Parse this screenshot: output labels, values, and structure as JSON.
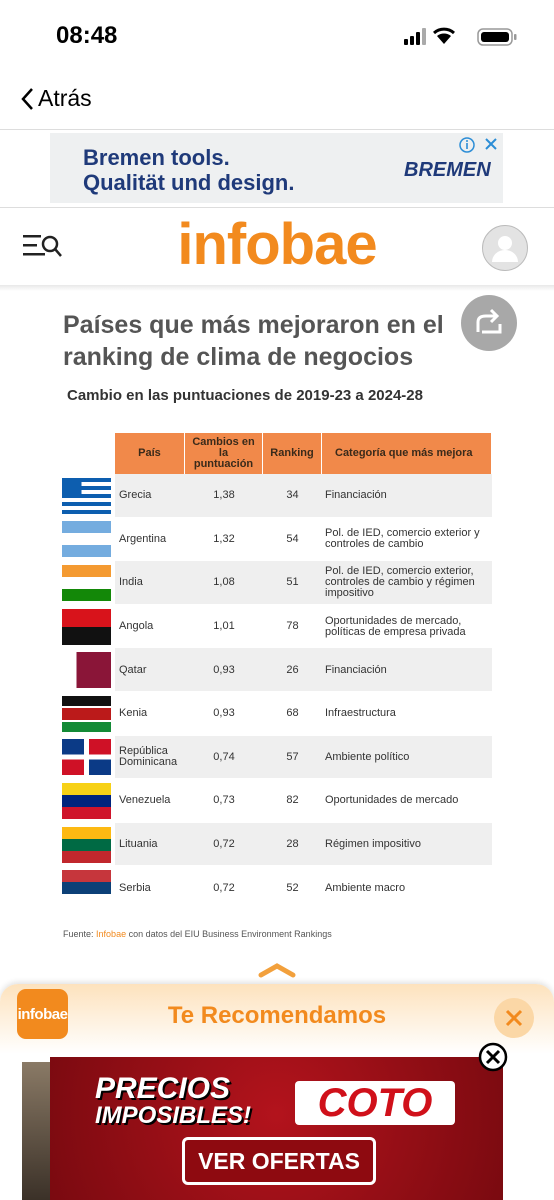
{
  "status_bar": {
    "time": "08:48"
  },
  "nav": {
    "back": "Atrás"
  },
  "ad_top": {
    "line1": "Bremen tools.",
    "line2": "Qualität und design.",
    "brand": "BREMEN"
  },
  "header": {
    "logo": "infobae"
  },
  "article": {
    "title": "Países que más mejoraron en el ranking de clima de negocios",
    "subtitle": "Cambio en las puntuaciones de 2019-23 a 2024-28",
    "table": {
      "columns": [
        "País",
        "Cambios en la puntuación",
        "Ranking",
        "Categoría que más mejora"
      ],
      "rows": [
        [
          "Grecia",
          "1,38",
          34,
          "Financiación"
        ],
        [
          "Argentina",
          "1,32",
          54,
          "Pol. de IED, comercio exterior y controles de cambio"
        ],
        [
          "India",
          "1,08",
          51,
          "Pol. de IED, comercio exterior, controles de cambio y régimen impositivo"
        ],
        [
          "Angola",
          "1,01",
          78,
          "Oportunidades de mercado, políticas de empresa privada"
        ],
        [
          "Qatar",
          "0,93",
          26,
          "Financiación"
        ],
        [
          "Kenia",
          "0,93",
          68,
          "Infraestructura"
        ],
        [
          "República Dominicana",
          "0,74",
          57,
          "Ambiente político"
        ],
        [
          "Venezuela",
          "0,73",
          82,
          "Oportunidades de mercado"
        ],
        [
          "Lituania",
          "0,72",
          28,
          "Régimen impositivo"
        ],
        [
          "Serbia",
          "0,72",
          52,
          "Ambiente macro"
        ]
      ]
    },
    "source": {
      "prefix": "Fuente:",
      "brand": "Infobae",
      "text": "con datos del EIU Business Environment Rankings"
    }
  },
  "recommend": {
    "logo": "infobae",
    "title": "Te Recomendamos"
  },
  "ad_bottom": {
    "line1": "PRECIOS",
    "line2": "IMPOSIBLES!",
    "brand": "COTO",
    "button": "VER OFERTAS"
  }
}
